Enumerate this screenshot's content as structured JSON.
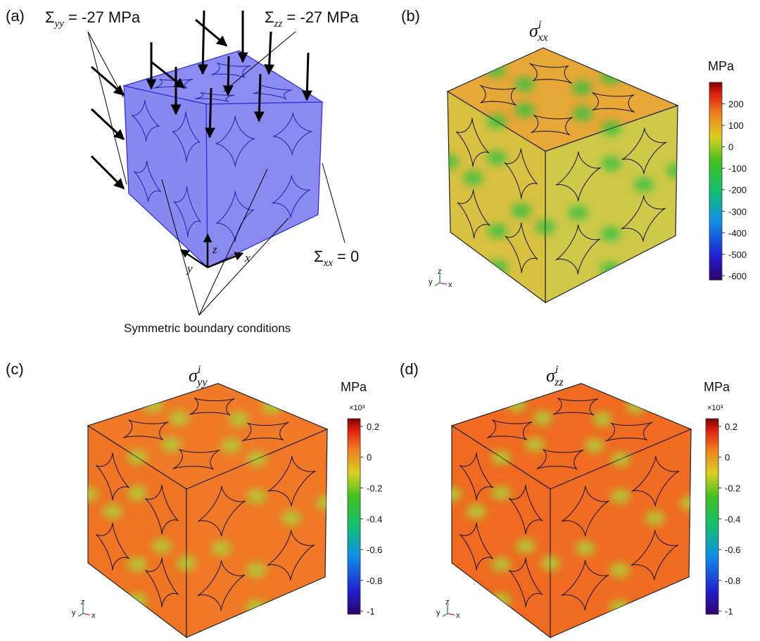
{
  "panels": [
    {
      "label": "(a)",
      "loads": [
        {
          "symbol": "Σ",
          "sub": "yy",
          "rest": " = -27 MPa"
        },
        {
          "symbol": "Σ",
          "sub": "zz",
          "rest": " = -27 MPa"
        },
        {
          "symbol": "Σ",
          "sub": "xx",
          "rest": " = 0"
        }
      ],
      "axes": [
        "x",
        "y",
        "z"
      ],
      "caption": "Symmetric boundary conditions"
    },
    {
      "label": "(b)",
      "title": {
        "symbol": "σ",
        "sup": "i",
        "sub": "xx"
      },
      "colorbar": {
        "unit": "MPa",
        "lim": [
          -620,
          300
        ],
        "ticks": [
          200,
          100,
          0,
          -100,
          -200,
          -300,
          -400,
          -500,
          -600
        ]
      },
      "triad": [
        "y",
        "z",
        "x"
      ]
    },
    {
      "label": "(c)",
      "title": {
        "symbol": "σ",
        "sup": "i",
        "sub": "yy"
      },
      "colorbar": {
        "unit": "MPa",
        "multiplier": "×10³",
        "lim": [
          -1.02,
          0.25
        ],
        "ticks": [
          0.2,
          0,
          -0.2,
          -0.4,
          -0.6,
          -0.8,
          -1
        ]
      },
      "triad": [
        "y",
        "z",
        "x"
      ]
    },
    {
      "label": "(d)",
      "title": {
        "symbol": "σ",
        "sup": "i",
        "sub": "zz"
      },
      "colorbar": {
        "unit": "MPa",
        "multiplier": "×10³",
        "lim": [
          -1.02,
          0.25
        ],
        "ticks": [
          0.2,
          0,
          -0.2,
          -0.4,
          -0.6,
          -0.8,
          -1
        ]
      },
      "triad": [
        "y",
        "z",
        "x"
      ]
    }
  ]
}
